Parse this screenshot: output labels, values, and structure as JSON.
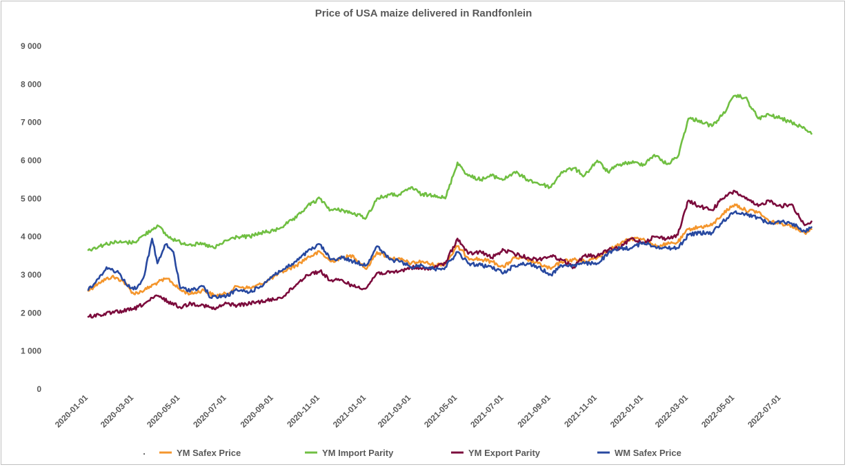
{
  "chart_data": {
    "type": "line",
    "title": "Price of USA maize delivered in Randfonlein",
    "xlabel": "",
    "ylabel": "",
    "ylim": [
      0,
      9000
    ],
    "yticks": [
      0,
      1000,
      2000,
      3000,
      4000,
      5000,
      6000,
      7000,
      8000,
      9000
    ],
    "ytick_labels": [
      "0",
      "1 000",
      "2 000",
      "3 000",
      "4 000",
      "5 000",
      "6 000",
      "7 000",
      "8 000",
      "9 000"
    ],
    "xlim": [
      "2020-01-01",
      "2022-08-15"
    ],
    "xtick_labels": [
      "2020-01-01",
      "2020-03-01",
      "2020-05-01",
      "2020-07-01",
      "2020-09-01",
      "2020-11-01",
      "2021-01-01",
      "2021-03-01",
      "2021-05-01",
      "2021-07-01",
      "2021-09-01",
      "2021-11-01",
      "2022-01-01",
      "2022-03-01",
      "2022-05-01",
      "2022-07-01"
    ],
    "grid": false,
    "legend_position": "bottom",
    "legend_marker": ".",
    "series": [
      {
        "name": "YM Safex Price",
        "color": "#f4962d",
        "points": [
          [
            "2020-01-01",
            2580
          ],
          [
            "2020-01-15",
            2800
          ],
          [
            "2020-02-01",
            2950
          ],
          [
            "2020-02-15",
            2850
          ],
          [
            "2020-03-01",
            2500
          ],
          [
            "2020-03-15",
            2600
          ],
          [
            "2020-04-01",
            2800
          ],
          [
            "2020-04-15",
            2900
          ],
          [
            "2020-05-01",
            2600
          ],
          [
            "2020-05-15",
            2500
          ],
          [
            "2020-06-01",
            2600
          ],
          [
            "2020-06-15",
            2450
          ],
          [
            "2020-07-01",
            2500
          ],
          [
            "2020-07-15",
            2700
          ],
          [
            "2020-08-01",
            2650
          ],
          [
            "2020-08-15",
            2750
          ],
          [
            "2020-09-01",
            2950
          ],
          [
            "2020-09-15",
            3100
          ],
          [
            "2020-10-01",
            3250
          ],
          [
            "2020-10-15",
            3450
          ],
          [
            "2020-11-01",
            3600
          ],
          [
            "2020-11-15",
            3350
          ],
          [
            "2020-12-01",
            3450
          ],
          [
            "2020-12-15",
            3500
          ],
          [
            "2021-01-01",
            3150
          ],
          [
            "2021-01-15",
            3600
          ],
          [
            "2021-02-01",
            3450
          ],
          [
            "2021-02-15",
            3400
          ],
          [
            "2021-03-01",
            3300
          ],
          [
            "2021-03-15",
            3350
          ],
          [
            "2021-04-01",
            3250
          ],
          [
            "2021-04-15",
            3300
          ],
          [
            "2021-05-01",
            3750
          ],
          [
            "2021-05-15",
            3450
          ],
          [
            "2021-06-01",
            3400
          ],
          [
            "2021-06-15",
            3350
          ],
          [
            "2021-07-01",
            3200
          ],
          [
            "2021-07-15",
            3450
          ],
          [
            "2021-08-01",
            3400
          ],
          [
            "2021-08-15",
            3300
          ],
          [
            "2021-09-01",
            3150
          ],
          [
            "2021-09-15",
            3350
          ],
          [
            "2021-10-01",
            3400
          ],
          [
            "2021-10-15",
            3350
          ],
          [
            "2021-11-01",
            3450
          ],
          [
            "2021-11-15",
            3650
          ],
          [
            "2021-12-01",
            3800
          ],
          [
            "2021-12-15",
            3950
          ],
          [
            "2022-01-01",
            3950
          ],
          [
            "2022-01-15",
            3750
          ],
          [
            "2022-02-01",
            3800
          ],
          [
            "2022-02-15",
            3850
          ],
          [
            "2022-03-01",
            4200
          ],
          [
            "2022-03-15",
            4250
          ],
          [
            "2022-04-01",
            4300
          ],
          [
            "2022-04-15",
            4600
          ],
          [
            "2022-05-01",
            4850
          ],
          [
            "2022-05-15",
            4700
          ],
          [
            "2022-06-01",
            4650
          ],
          [
            "2022-06-15",
            4400
          ],
          [
            "2022-07-01",
            4350
          ],
          [
            "2022-07-15",
            4300
          ],
          [
            "2022-08-01",
            4100
          ],
          [
            "2022-08-10",
            4200
          ]
        ]
      },
      {
        "name": "YM Import Parity",
        "color": "#70bf42",
        "points": [
          [
            "2020-01-01",
            3650
          ],
          [
            "2020-01-15",
            3750
          ],
          [
            "2020-02-01",
            3850
          ],
          [
            "2020-02-15",
            3850
          ],
          [
            "2020-03-01",
            3850
          ],
          [
            "2020-03-15",
            4050
          ],
          [
            "2020-04-01",
            4300
          ],
          [
            "2020-04-15",
            4000
          ],
          [
            "2020-05-01",
            3850
          ],
          [
            "2020-05-15",
            3800
          ],
          [
            "2020-06-01",
            3800
          ],
          [
            "2020-06-15",
            3700
          ],
          [
            "2020-07-01",
            3900
          ],
          [
            "2020-07-15",
            4000
          ],
          [
            "2020-08-01",
            4000
          ],
          [
            "2020-08-15",
            4100
          ],
          [
            "2020-09-01",
            4150
          ],
          [
            "2020-09-15",
            4300
          ],
          [
            "2020-10-01",
            4500
          ],
          [
            "2020-10-15",
            4800
          ],
          [
            "2020-11-01",
            5000
          ],
          [
            "2020-11-15",
            4700
          ],
          [
            "2020-12-01",
            4700
          ],
          [
            "2020-12-15",
            4600
          ],
          [
            "2021-01-01",
            4500
          ],
          [
            "2021-01-15",
            5000
          ],
          [
            "2021-02-01",
            5100
          ],
          [
            "2021-02-15",
            5100
          ],
          [
            "2021-03-01",
            5300
          ],
          [
            "2021-03-15",
            5100
          ],
          [
            "2021-04-01",
            5100
          ],
          [
            "2021-04-15",
            5000
          ],
          [
            "2021-05-01",
            5950
          ],
          [
            "2021-05-15",
            5600
          ],
          [
            "2021-06-01",
            5500
          ],
          [
            "2021-06-15",
            5600
          ],
          [
            "2021-07-01",
            5500
          ],
          [
            "2021-07-15",
            5700
          ],
          [
            "2021-08-01",
            5500
          ],
          [
            "2021-08-15",
            5400
          ],
          [
            "2021-09-01",
            5300
          ],
          [
            "2021-09-15",
            5700
          ],
          [
            "2021-10-01",
            5800
          ],
          [
            "2021-10-15",
            5600
          ],
          [
            "2021-11-01",
            6000
          ],
          [
            "2021-11-15",
            5700
          ],
          [
            "2021-12-01",
            5900
          ],
          [
            "2021-12-15",
            5950
          ],
          [
            "2022-01-01",
            5900
          ],
          [
            "2022-01-15",
            6150
          ],
          [
            "2022-02-01",
            5900
          ],
          [
            "2022-02-15",
            6100
          ],
          [
            "2022-03-01",
            7100
          ],
          [
            "2022-03-15",
            7050
          ],
          [
            "2022-04-01",
            6900
          ],
          [
            "2022-04-15",
            7200
          ],
          [
            "2022-05-01",
            7700
          ],
          [
            "2022-05-15",
            7650
          ],
          [
            "2022-06-01",
            7100
          ],
          [
            "2022-06-15",
            7200
          ],
          [
            "2022-07-01",
            7100
          ],
          [
            "2022-07-15",
            7000
          ],
          [
            "2022-08-01",
            6850
          ],
          [
            "2022-08-10",
            6700
          ]
        ]
      },
      {
        "name": "YM Export Parity",
        "color": "#7b0b3c",
        "points": [
          [
            "2020-01-01",
            1900
          ],
          [
            "2020-01-15",
            1950
          ],
          [
            "2020-02-01",
            2000
          ],
          [
            "2020-02-15",
            2050
          ],
          [
            "2020-03-01",
            2100
          ],
          [
            "2020-03-15",
            2250
          ],
          [
            "2020-04-01",
            2450
          ],
          [
            "2020-04-15",
            2300
          ],
          [
            "2020-05-01",
            2150
          ],
          [
            "2020-05-15",
            2250
          ],
          [
            "2020-06-01",
            2200
          ],
          [
            "2020-06-15",
            2100
          ],
          [
            "2020-07-01",
            2250
          ],
          [
            "2020-07-15",
            2200
          ],
          [
            "2020-08-01",
            2250
          ],
          [
            "2020-08-15",
            2300
          ],
          [
            "2020-09-01",
            2350
          ],
          [
            "2020-09-15",
            2450
          ],
          [
            "2020-10-01",
            2750
          ],
          [
            "2020-10-15",
            3000
          ],
          [
            "2020-11-01",
            3100
          ],
          [
            "2020-11-15",
            2850
          ],
          [
            "2020-12-01",
            2850
          ],
          [
            "2020-12-15",
            2700
          ],
          [
            "2021-01-01",
            2650
          ],
          [
            "2021-01-15",
            3050
          ],
          [
            "2021-02-01",
            3050
          ],
          [
            "2021-02-15",
            3100
          ],
          [
            "2021-03-01",
            3200
          ],
          [
            "2021-03-15",
            3150
          ],
          [
            "2021-04-01",
            3200
          ],
          [
            "2021-04-15",
            3300
          ],
          [
            "2021-05-01",
            3950
          ],
          [
            "2021-05-15",
            3550
          ],
          [
            "2021-06-01",
            3600
          ],
          [
            "2021-06-15",
            3450
          ],
          [
            "2021-07-01",
            3650
          ],
          [
            "2021-07-15",
            3550
          ],
          [
            "2021-08-01",
            3450
          ],
          [
            "2021-08-15",
            3400
          ],
          [
            "2021-09-01",
            3500
          ],
          [
            "2021-09-15",
            3400
          ],
          [
            "2021-10-01",
            3200
          ],
          [
            "2021-10-15",
            3500
          ],
          [
            "2021-11-01",
            3500
          ],
          [
            "2021-11-15",
            3650
          ],
          [
            "2021-12-01",
            3700
          ],
          [
            "2021-12-15",
            3950
          ],
          [
            "2022-01-01",
            3850
          ],
          [
            "2022-01-15",
            4000
          ],
          [
            "2022-02-01",
            3950
          ],
          [
            "2022-02-15",
            4050
          ],
          [
            "2022-03-01",
            4950
          ],
          [
            "2022-03-15",
            4800
          ],
          [
            "2022-04-01",
            4700
          ],
          [
            "2022-04-15",
            5000
          ],
          [
            "2022-05-01",
            5200
          ],
          [
            "2022-05-15",
            5000
          ],
          [
            "2022-06-01",
            4800
          ],
          [
            "2022-06-15",
            4950
          ],
          [
            "2022-07-01",
            4800
          ],
          [
            "2022-07-15",
            4850
          ],
          [
            "2022-08-01",
            4300
          ],
          [
            "2022-08-10",
            4400
          ]
        ]
      },
      {
        "name": "WM Safex Price",
        "color": "#2849a0",
        "points": [
          [
            "2020-01-01",
            2600
          ],
          [
            "2020-01-15",
            2900
          ],
          [
            "2020-01-25",
            3200
          ],
          [
            "2020-02-10",
            3050
          ],
          [
            "2020-02-25",
            2650
          ],
          [
            "2020-03-05",
            2650
          ],
          [
            "2020-03-15",
            3000
          ],
          [
            "2020-03-25",
            3950
          ],
          [
            "2020-04-01",
            3300
          ],
          [
            "2020-04-12",
            3800
          ],
          [
            "2020-04-22",
            3600
          ],
          [
            "2020-05-01",
            2650
          ],
          [
            "2020-05-15",
            2600
          ],
          [
            "2020-06-01",
            2700
          ],
          [
            "2020-06-10",
            2400
          ],
          [
            "2020-07-01",
            2450
          ],
          [
            "2020-07-15",
            2600
          ],
          [
            "2020-08-01",
            2550
          ],
          [
            "2020-08-15",
            2700
          ],
          [
            "2020-09-01",
            3000
          ],
          [
            "2020-09-15",
            3150
          ],
          [
            "2020-10-01",
            3350
          ],
          [
            "2020-10-15",
            3600
          ],
          [
            "2020-11-01",
            3800
          ],
          [
            "2020-11-15",
            3400
          ],
          [
            "2020-12-01",
            3450
          ],
          [
            "2020-12-15",
            3350
          ],
          [
            "2021-01-01",
            3250
          ],
          [
            "2021-01-15",
            3750
          ],
          [
            "2021-02-01",
            3400
          ],
          [
            "2021-02-15",
            3350
          ],
          [
            "2021-03-01",
            3200
          ],
          [
            "2021-03-15",
            3250
          ],
          [
            "2021-04-01",
            3150
          ],
          [
            "2021-04-15",
            3200
          ],
          [
            "2021-05-01",
            3600
          ],
          [
            "2021-05-15",
            3300
          ],
          [
            "2021-06-01",
            3250
          ],
          [
            "2021-06-15",
            3200
          ],
          [
            "2021-07-01",
            3050
          ],
          [
            "2021-07-15",
            3250
          ],
          [
            "2021-08-01",
            3300
          ],
          [
            "2021-08-15",
            3200
          ],
          [
            "2021-09-01",
            3000
          ],
          [
            "2021-09-15",
            3250
          ],
          [
            "2021-10-01",
            3250
          ],
          [
            "2021-10-15",
            3300
          ],
          [
            "2021-11-01",
            3300
          ],
          [
            "2021-11-15",
            3550
          ],
          [
            "2021-12-01",
            3700
          ],
          [
            "2021-12-15",
            3700
          ],
          [
            "2022-01-01",
            3850
          ],
          [
            "2022-01-15",
            3750
          ],
          [
            "2022-02-01",
            3700
          ],
          [
            "2022-02-15",
            3700
          ],
          [
            "2022-03-01",
            4050
          ],
          [
            "2022-03-15",
            4100
          ],
          [
            "2022-04-01",
            4100
          ],
          [
            "2022-04-15",
            4400
          ],
          [
            "2022-05-01",
            4650
          ],
          [
            "2022-05-15",
            4600
          ],
          [
            "2022-06-01",
            4500
          ],
          [
            "2022-06-15",
            4350
          ],
          [
            "2022-07-01",
            4400
          ],
          [
            "2022-07-15",
            4350
          ],
          [
            "2022-08-01",
            4150
          ],
          [
            "2022-08-10",
            4250
          ]
        ]
      }
    ]
  }
}
